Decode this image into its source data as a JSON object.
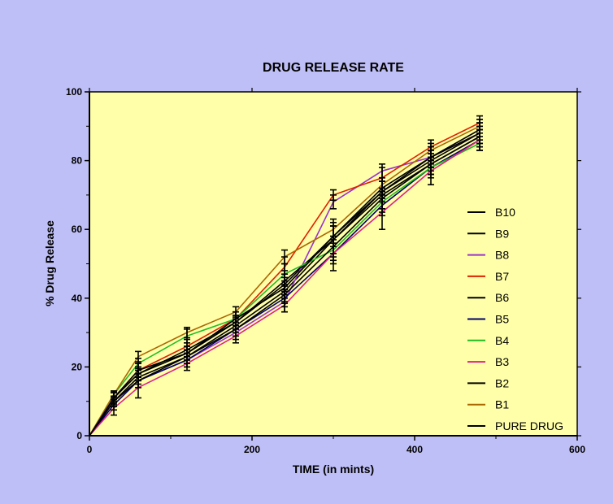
{
  "chart_data": {
    "type": "line",
    "title": "DRUG RELEASE RATE",
    "xlabel": "TIME (in mints)",
    "ylabel": "% Drug Release",
    "xlim": [
      0,
      600
    ],
    "ylim": [
      0,
      100
    ],
    "xticks": [
      0,
      200,
      400,
      600
    ],
    "yticks": [
      0,
      20,
      40,
      60,
      80,
      100
    ],
    "grid": false,
    "legend_position": "right",
    "plot_background": "#ffffaa",
    "page_background": "#bfbff7",
    "x": [
      0,
      30,
      60,
      120,
      180,
      240,
      300,
      360,
      420,
      480
    ],
    "series": [
      {
        "name": "B10",
        "color": "#000000",
        "values": [
          0,
          11,
          18,
          24,
          33,
          44,
          58,
          71,
          80,
          88
        ],
        "errors": [
          0,
          1.5,
          2,
          2,
          2,
          3,
          5,
          3,
          3,
          3
        ]
      },
      {
        "name": "B9",
        "color": "#000000",
        "values": [
          0,
          10,
          17,
          23,
          32,
          42,
          57,
          70,
          79,
          87
        ],
        "errors": [
          0,
          1.5,
          2,
          2,
          2,
          3,
          4,
          4,
          3,
          3
        ]
      },
      {
        "name": "B8",
        "color": "#9933cc",
        "values": [
          0,
          10,
          16,
          22,
          30,
          39,
          68,
          77,
          81,
          88
        ],
        "errors": [
          0,
          1,
          2,
          2,
          2,
          3,
          2,
          2,
          2,
          2
        ]
      },
      {
        "name": "B7",
        "color": "#dd2200",
        "values": [
          0,
          11,
          19,
          26,
          34,
          49,
          70,
          75,
          84,
          91
        ],
        "errors": [
          0,
          1.5,
          2,
          2,
          2,
          3,
          1.5,
          3,
          2,
          2
        ]
      },
      {
        "name": "B6",
        "color": "#000000",
        "values": [
          0,
          11,
          18,
          25,
          33,
          45,
          57,
          71,
          81,
          88
        ],
        "errors": [
          0,
          1.5,
          2,
          2,
          2,
          3,
          4,
          3,
          3,
          3
        ]
      },
      {
        "name": "B5",
        "color": "#000066",
        "values": [
          0,
          9,
          16,
          22,
          31,
          40,
          53,
          67,
          78,
          86
        ],
        "errors": [
          0,
          1.5,
          2,
          2,
          2,
          2.5,
          3,
          3,
          3,
          3
        ]
      },
      {
        "name": "B4",
        "color": "#22bb22",
        "values": [
          0,
          12,
          21,
          29,
          34,
          47,
          54,
          68,
          78,
          85
        ],
        "errors": [
          0,
          1,
          1.5,
          2,
          2,
          3,
          3,
          3,
          2,
          2
        ]
      },
      {
        "name": "B3",
        "color": "#dd2288",
        "values": [
          0,
          8,
          14,
          21,
          29,
          38,
          53,
          65,
          77,
          86
        ],
        "errors": [
          0,
          2,
          3,
          2,
          2,
          2,
          5,
          5,
          4,
          3
        ]
      },
      {
        "name": "B2",
        "color": "#000000",
        "values": [
          0,
          10,
          16,
          23,
          31,
          41,
          55,
          69,
          79,
          87
        ],
        "errors": [
          0,
          1.5,
          2,
          2,
          2,
          2.5,
          3,
          3,
          3,
          3
        ]
      },
      {
        "name": "B1",
        "color": "#aa6600",
        "values": [
          0,
          12,
          23,
          30,
          36,
          52,
          60,
          73,
          83,
          90
        ],
        "errors": [
          0,
          1,
          1.5,
          1.5,
          1.5,
          2,
          2,
          2,
          2,
          2
        ]
      },
      {
        "name": "PURE DRUG",
        "color": "#000000",
        "values": [
          0,
          11,
          19,
          24,
          34,
          43,
          58,
          72,
          81,
          89
        ],
        "errors": [
          0,
          1.5,
          2,
          2,
          2,
          2,
          3,
          3,
          3,
          3
        ]
      }
    ]
  }
}
